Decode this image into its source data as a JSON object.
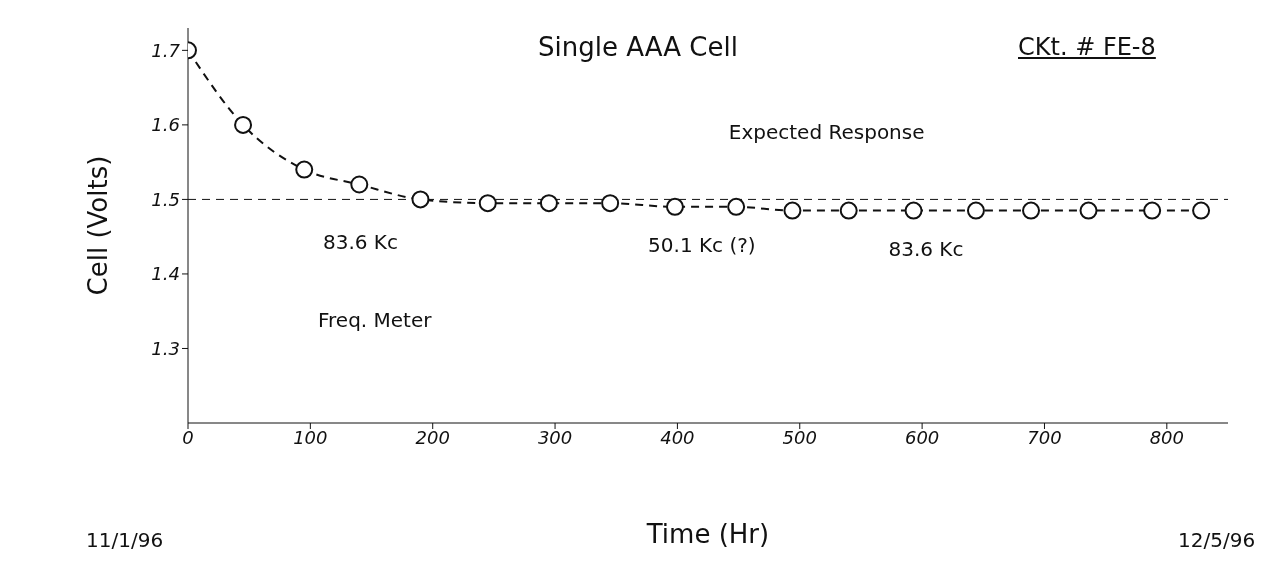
{
  "chart_data": {
    "type": "line",
    "title": "Single AAA Cell",
    "xlabel": "Time (Hr)",
    "ylabel": "Cell (Volts)",
    "x": [
      0,
      45,
      95,
      140,
      190,
      245,
      295,
      345,
      398,
      448,
      494,
      540,
      593,
      644,
      689,
      736,
      788,
      828
    ],
    "series": [
      {
        "color": "#111111",
        "values": [
          1.7,
          1.6,
          1.54,
          1.52,
          1.5,
          1.495,
          1.495,
          1.495,
          1.49,
          1.49,
          1.485,
          1.485,
          1.485,
          1.485,
          1.485,
          1.485,
          1.485,
          1.485
        ]
      }
    ],
    "xlim": [
      0,
      850
    ],
    "xticks": [
      0,
      100,
      200,
      300,
      400,
      500,
      600,
      700,
      800
    ],
    "ylim": [
      1.2,
      1.73
    ],
    "yticks": [
      1.3,
      1.4,
      1.5,
      1.6,
      1.7
    ],
    "ref_lines": [
      {
        "axis": "y",
        "value": 1.5,
        "label": "Expected Response",
        "color": "#111111",
        "line_style": "dashed"
      }
    ],
    "annotations": [
      {
        "text": "83.6 Kc",
        "x": 190,
        "y": 1.5
      },
      {
        "text": "50.1 Kc (?)",
        "x": 420,
        "y": 1.49
      },
      {
        "text": "83.6 Kc",
        "x": 644,
        "y": 1.485
      },
      "CKt. # FE-8",
      "Freq. Meter",
      "11/1/96",
      "12/5/96"
    ],
    "marker": "circle",
    "line_style": "dashed",
    "grid": false,
    "legend": false
  }
}
